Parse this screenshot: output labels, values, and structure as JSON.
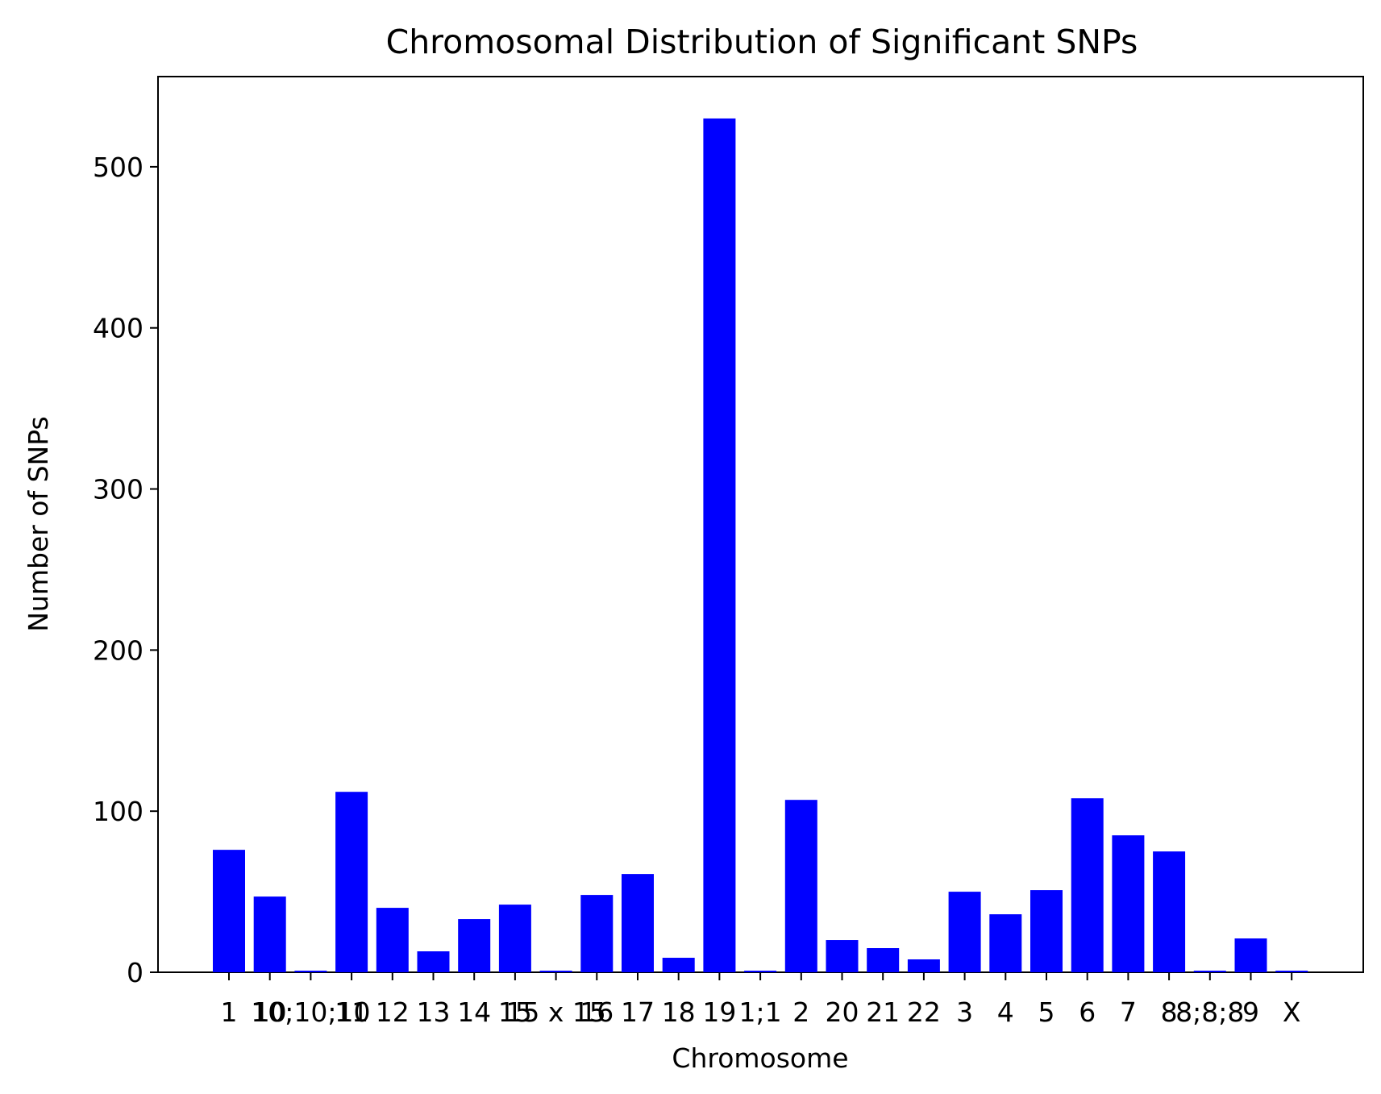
{
  "chart_data": {
    "type": "bar",
    "title": "Chromosomal Distribution of Significant SNPs",
    "xlabel": "Chromosome",
    "ylabel": "Number of SNPs",
    "categories": [
      "1",
      "10",
      "10;10;10",
      "11",
      "12",
      "13",
      "14",
      "15",
      "15 x 15",
      "16",
      "17",
      "18",
      "19",
      "1;1",
      "2",
      "20",
      "21",
      "22",
      "3",
      "4",
      "5",
      "6",
      "7",
      "8",
      "8;8;8",
      "9",
      "X"
    ],
    "values": [
      76,
      47,
      1,
      112,
      40,
      13,
      33,
      42,
      1,
      48,
      61,
      9,
      530,
      1,
      107,
      20,
      15,
      8,
      50,
      36,
      51,
      108,
      85,
      75,
      1,
      21,
      1
    ],
    "ylim": [
      0,
      556
    ],
    "yticks": [
      0,
      100,
      200,
      300,
      400,
      500
    ],
    "bar_color": "#0000ff",
    "grid": false,
    "legend": "none"
  }
}
